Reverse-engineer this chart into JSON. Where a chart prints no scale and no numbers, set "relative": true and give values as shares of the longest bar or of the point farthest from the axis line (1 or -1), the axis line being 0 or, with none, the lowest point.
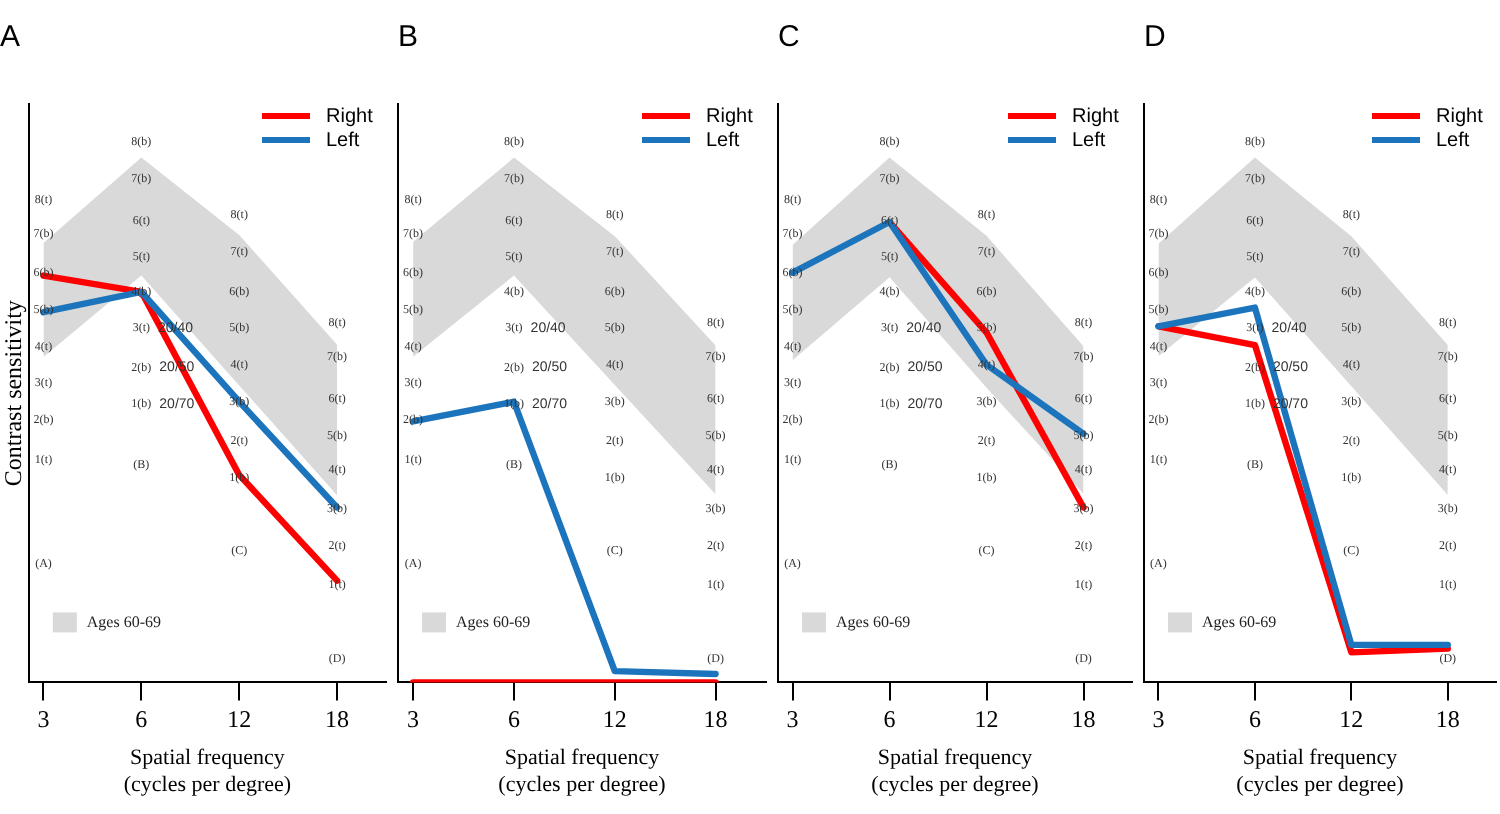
{
  "chart_data": [
    {
      "type": "line",
      "title": "A",
      "xlabel": "Spatial frequency\n(cycles per degree)",
      "ylabel": "Contrast sensitivity",
      "categories": [
        "3",
        "6",
        "12",
        "18"
      ],
      "relative": true,
      "tick_labels": "x",
      "legend": "top right",
      "marker": "none",
      "series": [
        {
          "name": "Ages 60-69",
          "type": "area",
          "color": "#d9d9d9",
          "values": [
            null,
            null,
            null,
            null
          ],
          "lower": [
            0.8,
            1,
            0.73,
            0.46
          ],
          "upper": [
            1.08,
            1.29,
            1.1,
            0.83
          ]
        },
        {
          "name": "Right",
          "color": "#ff0000",
          "values": [
            1,
            0.96,
            0.51,
            0.25
          ]
        },
        {
          "name": "Left",
          "color": "#1c75bc",
          "values": [
            0.91,
            0.96,
            0.69,
            0.43
          ]
        }
      ],
      "annotations": [
        "8(t)",
        "7(b)",
        "6(b)",
        "5(b)",
        "4(t)",
        "3(t)",
        "2(b)",
        "1(t)",
        "(A)",
        "8(b)",
        "7(b)",
        "6(t)",
        "5(t)",
        "4(b)",
        "3(t)",
        "20/40",
        "2(b)",
        "20/50",
        "1(b)",
        "20/70",
        "(B)",
        "8(t)",
        "7(t)",
        "6(b)",
        "5(b)",
        "4(t)",
        "3(b)",
        "2(t)",
        "1(b)",
        "(C)",
        "8(t)",
        "7(b)",
        "6(t)",
        "5(b)",
        "4(t)",
        "3(b)",
        "2(t)",
        "1(t)",
        "(D)"
      ]
    },
    {
      "type": "line",
      "title": "B",
      "xlabel": "Spatial frequency\n(cycles per degree)",
      "categories": [
        "3",
        "6",
        "12",
        "18"
      ],
      "relative": true,
      "tick_labels": "x",
      "legend": "top right",
      "marker": "none",
      "series": [
        {
          "name": "Ages 60-69",
          "type": "area",
          "color": "#d9d9d9",
          "values": [
            null,
            null,
            null,
            null
          ],
          "lower": [
            1.16,
            1.45,
            1.06,
            0.67
          ],
          "upper": [
            1.57,
            1.87,
            1.59,
            1.2
          ]
        },
        {
          "name": "Right",
          "color": "#ff0000",
          "values": [
            0,
            0,
            0,
            0
          ]
        },
        {
          "name": "Left",
          "color": "#1c75bc",
          "values": [
            0.93,
            1,
            0.04,
            0.03
          ]
        }
      ],
      "annotations": [
        "8(t)",
        "7(b)",
        "6(b)",
        "5(b)",
        "4(t)",
        "3(t)",
        "2(b)",
        "1(t)",
        "(A)",
        "8(b)",
        "7(b)",
        "6(t)",
        "5(t)",
        "4(b)",
        "3(t)",
        "20/40",
        "2(b)",
        "20/50",
        "1(b)",
        "20/70",
        "(B)",
        "8(t)",
        "7(t)",
        "6(b)",
        "5(b)",
        "4(t)",
        "3(b)",
        "2(t)",
        "1(b)",
        "(C)",
        "8(t)",
        "7(b)",
        "6(t)",
        "5(b)",
        "4(t)",
        "3(b)",
        "2(t)",
        "1(t)",
        "(D)"
      ]
    },
    {
      "type": "line",
      "title": "C",
      "xlabel": "Spatial frequency\n(cycles per degree)",
      "categories": [
        "3",
        "6",
        "12",
        "18"
      ],
      "relative": true,
      "tick_labels": "x",
      "legend": "top right",
      "marker": "none",
      "series": [
        {
          "name": "Ages 60-69",
          "type": "area",
          "color": "#d9d9d9",
          "values": [
            null,
            null,
            null,
            null
          ],
          "lower": [
            0.7,
            0.88,
            0.64,
            0.41
          ],
          "upper": [
            0.95,
            1.14,
            0.97,
            0.73
          ]
        },
        {
          "name": "Right",
          "color": "#ff0000",
          "values": [
            null,
            1,
            0.76,
            0.38
          ]
        },
        {
          "name": "Left",
          "color": "#1c75bc",
          "values": [
            0.89,
            1,
            0.69,
            0.54
          ]
        }
      ],
      "annotations": [
        "8(t)",
        "7(b)",
        "6(b)",
        "5(b)",
        "4(t)",
        "3(t)",
        "2(b)",
        "1(t)",
        "(A)",
        "8(b)",
        "7(b)",
        "6(t)",
        "5(t)",
        "4(b)",
        "3(t)",
        "20/40",
        "2(b)",
        "20/50",
        "1(b)",
        "20/70",
        "(B)",
        "8(t)",
        "7(t)",
        "6(b)",
        "5(b)",
        "4(t)",
        "3(b)",
        "2(t)",
        "1(b)",
        "(C)",
        "8(t)",
        "7(b)",
        "6(t)",
        "5(b)",
        "4(t)",
        "3(b)",
        "2(t)",
        "1(t)",
        "(D)"
      ]
    },
    {
      "type": "line",
      "title": "D",
      "xlabel": "Spatial frequency\n(cycles per degree)",
      "categories": [
        "3",
        "6",
        "12",
        "18"
      ],
      "relative": true,
      "tick_labels": "x",
      "legend": "top right",
      "marker": "none",
      "series": [
        {
          "name": "Ages 60-69",
          "type": "area",
          "color": "#d9d9d9",
          "values": [
            null,
            null,
            null,
            null
          ],
          "lower": [
            0.87,
            1.08,
            0.79,
            0.5
          ],
          "upper": [
            1.17,
            1.4,
            1.19,
            0.9
          ]
        },
        {
          "name": "Right",
          "color": "#ff0000",
          "values": [
            0.95,
            0.9,
            0.08,
            0.09
          ]
        },
        {
          "name": "Left",
          "color": "#1c75bc",
          "values": [
            0.95,
            1,
            0.1,
            0.1
          ]
        }
      ],
      "annotations": [
        "8(t)",
        "7(b)",
        "6(b)",
        "5(b)",
        "4(t)",
        "3(t)",
        "2(b)",
        "1(t)",
        "(A)",
        "8(b)",
        "7(b)",
        "6(t)",
        "5(t)",
        "4(b)",
        "3(t)",
        "20/40",
        "2(b)",
        "20/50",
        "1(b)",
        "20/70",
        "(B)",
        "8(t)",
        "7(t)",
        "6(b)",
        "5(b)",
        "4(t)",
        "3(b)",
        "2(t)",
        "1(b)",
        "(C)",
        "8(t)",
        "7(b)",
        "6(t)",
        "5(b)",
        "4(t)",
        "3(b)",
        "2(t)",
        "1(t)",
        "(D)"
      ]
    }
  ]
}
